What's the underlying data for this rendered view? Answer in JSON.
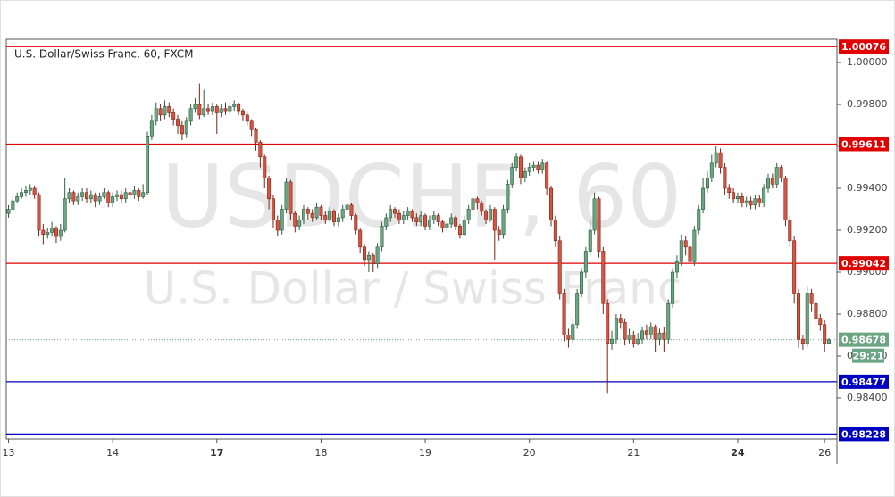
{
  "chart_data": {
    "type": "candlestick",
    "title": "U.S. Dollar/Swiss Franc, 60, FXCM",
    "watermark": "USDCHF, 60",
    "watermark_subtitle": "U.S. Dollar / Swiss Franc",
    "up_color": "#6ba583",
    "down_color": "#d75442",
    "ylim": [
      0.98204,
      1.00111
    ],
    "yticks": [
      {
        "value": 1,
        "label": "1.00000"
      },
      {
        "value": 0.998,
        "label": "0.99800"
      },
      {
        "value": 0.996,
        "label": "0.99600"
      },
      {
        "value": 0.994,
        "label": "0.99400"
      },
      {
        "value": 0.992,
        "label": "0.99200"
      },
      {
        "value": 0.99,
        "label": "0.99000"
      },
      {
        "value": 0.988,
        "label": "0.98800"
      },
      {
        "value": 0.986,
        "label": "0.98600"
      },
      {
        "value": 0.984,
        "label": "0.98400"
      }
    ],
    "grid": false,
    "levels": [
      {
        "value": 1.00076,
        "color": "#e00000"
      },
      {
        "value": 0.99611,
        "color": "#e00000"
      },
      {
        "value": 0.99042,
        "color": "#e00000"
      },
      {
        "value": 0.98477,
        "color": "#0000c0"
      },
      {
        "value": 0.98228,
        "color": "#0000c0"
      }
    ],
    "current": {
      "value": 0.98678,
      "countdown": "29:21",
      "color": "#6ba583"
    },
    "categories": [
      "13",
      null,
      null,
      null,
      null,
      null,
      null,
      null,
      null,
      null,
      null,
      null,
      null,
      null,
      null,
      null,
      null,
      null,
      null,
      null,
      null,
      null,
      null,
      null,
      "14",
      null,
      null,
      null,
      null,
      null,
      null,
      null,
      null,
      null,
      null,
      null,
      null,
      null,
      null,
      null,
      null,
      null,
      null,
      null,
      null,
      null,
      null,
      null,
      "17",
      null,
      null,
      null,
      null,
      null,
      null,
      null,
      null,
      null,
      null,
      null,
      null,
      null,
      null,
      null,
      null,
      null,
      null,
      null,
      null,
      null,
      null,
      null,
      "18",
      null,
      null,
      null,
      null,
      null,
      null,
      null,
      null,
      null,
      null,
      null,
      null,
      null,
      null,
      null,
      null,
      null,
      null,
      null,
      null,
      null,
      null,
      null,
      "19",
      null,
      null,
      null,
      null,
      null,
      null,
      null,
      null,
      null,
      null,
      null,
      null,
      null,
      null,
      null,
      null,
      null,
      null,
      null,
      null,
      null,
      null,
      null,
      "20",
      null,
      null,
      null,
      null,
      null,
      null,
      null,
      null,
      null,
      null,
      null,
      null,
      null,
      null,
      null,
      null,
      null,
      null,
      null,
      null,
      null,
      null,
      null,
      "21",
      null,
      null,
      null,
      null,
      null,
      null,
      null,
      null,
      null,
      null,
      null,
      null,
      null,
      null,
      null,
      null,
      null,
      null,
      null,
      null,
      null,
      null,
      null,
      "24",
      null,
      null,
      null,
      null,
      null,
      null,
      null,
      null,
      null,
      null,
      null,
      null,
      null,
      null,
      null,
      null,
      null,
      null,
      null,
      "26",
      null
    ],
    "candles": [
      [
        0.9928,
        0.9932,
        0.9926,
        0.993
      ],
      [
        0.993,
        0.9936,
        0.9929,
        0.9934
      ],
      [
        0.9934,
        0.9938,
        0.9933,
        0.9936
      ],
      [
        0.9936,
        0.994,
        0.9935,
        0.9938
      ],
      [
        0.9938,
        0.9941,
        0.9936,
        0.9939
      ],
      [
        0.9939,
        0.9942,
        0.9937,
        0.994
      ],
      [
        0.994,
        0.9941,
        0.9935,
        0.9937
      ],
      [
        0.9937,
        0.9938,
        0.9917,
        0.992
      ],
      [
        0.992,
        0.9923,
        0.9913,
        0.9918
      ],
      [
        0.9918,
        0.9921,
        0.9916,
        0.9919
      ],
      [
        0.9919,
        0.9924,
        0.9917,
        0.9921
      ],
      [
        0.9921,
        0.9922,
        0.9914,
        0.9917
      ],
      [
        0.9917,
        0.9923,
        0.9915,
        0.992
      ],
      [
        0.992,
        0.9945,
        0.9919,
        0.9935
      ],
      [
        0.9935,
        0.994,
        0.9933,
        0.9938
      ],
      [
        0.9938,
        0.9939,
        0.9932,
        0.9934
      ],
      [
        0.9934,
        0.9938,
        0.9932,
        0.9936
      ],
      [
        0.9936,
        0.994,
        0.9934,
        0.9938
      ],
      [
        0.9938,
        0.994,
        0.9933,
        0.9935
      ],
      [
        0.9935,
        0.9939,
        0.9933,
        0.9937
      ],
      [
        0.9937,
        0.9938,
        0.9931,
        0.9934
      ],
      [
        0.9934,
        0.9938,
        0.9932,
        0.9936
      ],
      [
        0.9936,
        0.994,
        0.9935,
        0.9938
      ],
      [
        0.9938,
        0.9939,
        0.9931,
        0.9933
      ],
      [
        0.9933,
        0.9938,
        0.9931,
        0.9936
      ],
      [
        0.9936,
        0.9939,
        0.9934,
        0.9937
      ],
      [
        0.9937,
        0.9939,
        0.9933,
        0.9935
      ],
      [
        0.9935,
        0.994,
        0.9933,
        0.9938
      ],
      [
        0.9938,
        0.994,
        0.9935,
        0.9937
      ],
      [
        0.9937,
        0.9941,
        0.9935,
        0.9939
      ],
      [
        0.9939,
        0.994,
        0.9934,
        0.9936
      ],
      [
        0.9936,
        0.9942,
        0.9935,
        0.9938
      ],
      [
        0.9938,
        0.9967,
        0.9937,
        0.9965
      ],
      [
        0.9965,
        0.9975,
        0.9963,
        0.9972
      ],
      [
        0.9972,
        0.9981,
        0.997,
        0.9978
      ],
      [
        0.9978,
        0.998,
        0.9972,
        0.9975
      ],
      [
        0.9975,
        0.9982,
        0.9973,
        0.9979
      ],
      [
        0.9979,
        0.9981,
        0.9974,
        0.9976
      ],
      [
        0.9976,
        0.9978,
        0.997,
        0.9973
      ],
      [
        0.9973,
        0.9975,
        0.9966,
        0.997
      ],
      [
        0.997,
        0.9972,
        0.9963,
        0.9966
      ],
      [
        0.9966,
        0.9974,
        0.9964,
        0.9972
      ],
      [
        0.9972,
        0.998,
        0.997,
        0.9978
      ],
      [
        0.9978,
        0.9983,
        0.9976,
        0.998
      ],
      [
        0.998,
        0.999,
        0.9973,
        0.9975
      ],
      [
        0.9975,
        0.9987,
        0.9974,
        0.9978
      ],
      [
        0.9978,
        0.998,
        0.9975,
        0.9977
      ],
      [
        0.9977,
        0.9981,
        0.9975,
        0.9979
      ],
      [
        0.9979,
        0.998,
        0.9966,
        0.9976
      ],
      [
        0.9976,
        0.998,
        0.9974,
        0.9978
      ],
      [
        0.9978,
        0.9981,
        0.9975,
        0.9977
      ],
      [
        0.9977,
        0.9981,
        0.9975,
        0.9979
      ],
      [
        0.9979,
        0.9982,
        0.9977,
        0.998
      ],
      [
        0.998,
        0.9981,
        0.9975,
        0.9977
      ],
      [
        0.9977,
        0.9978,
        0.9972,
        0.9975
      ],
      [
        0.9975,
        0.9976,
        0.997,
        0.9972
      ],
      [
        0.9972,
        0.9973,
        0.9965,
        0.9968
      ],
      [
        0.9968,
        0.9969,
        0.9958,
        0.9962
      ],
      [
        0.9962,
        0.9963,
        0.995,
        0.9955
      ],
      [
        0.9955,
        0.9956,
        0.994,
        0.9945
      ],
      [
        0.9945,
        0.9946,
        0.993,
        0.9935
      ],
      [
        0.9935,
        0.9937,
        0.9921,
        0.9925
      ],
      [
        0.9925,
        0.9927,
        0.9917,
        0.992
      ],
      [
        0.992,
        0.9932,
        0.9918,
        0.993
      ],
      [
        0.993,
        0.9945,
        0.9928,
        0.9943
      ],
      [
        0.9943,
        0.9944,
        0.9925,
        0.9928
      ],
      [
        0.9928,
        0.9929,
        0.9919,
        0.9922
      ],
      [
        0.9922,
        0.9927,
        0.992,
        0.9925
      ],
      [
        0.9925,
        0.9932,
        0.9923,
        0.993
      ],
      [
        0.993,
        0.9931,
        0.9925,
        0.9928
      ],
      [
        0.9928,
        0.993,
        0.9924,
        0.9926
      ],
      [
        0.9926,
        0.9933,
        0.9925,
        0.9931
      ],
      [
        0.9931,
        0.9932,
        0.9925,
        0.9927
      ],
      [
        0.9927,
        0.9929,
        0.9923,
        0.9925
      ],
      [
        0.9925,
        0.9931,
        0.9924,
        0.9929
      ],
      [
        0.9929,
        0.993,
        0.9922,
        0.9924
      ],
      [
        0.9924,
        0.9928,
        0.9922,
        0.9926
      ],
      [
        0.9926,
        0.9932,
        0.9924,
        0.993
      ],
      [
        0.993,
        0.9934,
        0.9928,
        0.9932
      ],
      [
        0.9932,
        0.9933,
        0.9925,
        0.9927
      ],
      [
        0.9927,
        0.9928,
        0.9918,
        0.992
      ],
      [
        0.992,
        0.9921,
        0.9909,
        0.9912
      ],
      [
        0.9912,
        0.9913,
        0.9903,
        0.9906
      ],
      [
        0.9906,
        0.991,
        0.99,
        0.9908
      ],
      [
        0.9908,
        0.9909,
        0.99,
        0.9904
      ],
      [
        0.9904,
        0.9914,
        0.9902,
        0.9912
      ],
      [
        0.9912,
        0.9924,
        0.991,
        0.9922
      ],
      [
        0.9922,
        0.9928,
        0.992,
        0.9926
      ],
      [
        0.9926,
        0.9932,
        0.9924,
        0.993
      ],
      [
        0.993,
        0.9931,
        0.9926,
        0.9928
      ],
      [
        0.9928,
        0.993,
        0.9923,
        0.9925
      ],
      [
        0.9925,
        0.9929,
        0.9923,
        0.9927
      ],
      [
        0.9927,
        0.9931,
        0.9925,
        0.9929
      ],
      [
        0.9929,
        0.993,
        0.9924,
        0.9926
      ],
      [
        0.9926,
        0.9928,
        0.9922,
        0.9924
      ],
      [
        0.9924,
        0.9929,
        0.9922,
        0.9927
      ],
      [
        0.9927,
        0.9928,
        0.992,
        0.9922
      ],
      [
        0.9922,
        0.9927,
        0.992,
        0.9925
      ],
      [
        0.9925,
        0.9929,
        0.9923,
        0.9927
      ],
      [
        0.9927,
        0.9928,
        0.9922,
        0.9924
      ],
      [
        0.9924,
        0.9925,
        0.9919,
        0.9921
      ],
      [
        0.9921,
        0.9925,
        0.9919,
        0.9923
      ],
      [
        0.9923,
        0.9928,
        0.9921,
        0.9926
      ],
      [
        0.9926,
        0.9927,
        0.992,
        0.9922
      ],
      [
        0.9922,
        0.9923,
        0.9916,
        0.9918
      ],
      [
        0.9918,
        0.9927,
        0.9917,
        0.9925
      ],
      [
        0.9925,
        0.9932,
        0.9923,
        0.993
      ],
      [
        0.993,
        0.9937,
        0.9928,
        0.9935
      ],
      [
        0.9935,
        0.9936,
        0.993,
        0.9933
      ],
      [
        0.9933,
        0.9934,
        0.9927,
        0.9929
      ],
      [
        0.9929,
        0.993,
        0.9923,
        0.9925
      ],
      [
        0.9925,
        0.9932,
        0.9924,
        0.993
      ],
      [
        0.993,
        0.9931,
        0.9906,
        0.992
      ],
      [
        0.992,
        0.9922,
        0.9915,
        0.9918
      ],
      [
        0.9918,
        0.9932,
        0.9916,
        0.993
      ],
      [
        0.993,
        0.9944,
        0.9928,
        0.9942
      ],
      [
        0.9942,
        0.9952,
        0.994,
        0.995
      ],
      [
        0.995,
        0.9957,
        0.9948,
        0.9955
      ],
      [
        0.9955,
        0.9956,
        0.9942,
        0.9945
      ],
      [
        0.9945,
        0.995,
        0.9943,
        0.9948
      ],
      [
        0.9948,
        0.9952,
        0.9946,
        0.995
      ],
      [
        0.995,
        0.9953,
        0.9948,
        0.9951
      ],
      [
        0.9951,
        0.9953,
        0.9947,
        0.9949
      ],
      [
        0.9949,
        0.9954,
        0.9947,
        0.9952
      ],
      [
        0.9952,
        0.9953,
        0.9937,
        0.994
      ],
      [
        0.994,
        0.9941,
        0.9922,
        0.9925
      ],
      [
        0.9925,
        0.9927,
        0.9912,
        0.9915
      ],
      [
        0.9915,
        0.9917,
        0.9887,
        0.989
      ],
      [
        0.989,
        0.9892,
        0.9867,
        0.987
      ],
      [
        0.987,
        0.9873,
        0.9864,
        0.9868
      ],
      [
        0.9868,
        0.9878,
        0.9866,
        0.9875
      ],
      [
        0.9875,
        0.9892,
        0.9873,
        0.989
      ],
      [
        0.989,
        0.9902,
        0.9888,
        0.99
      ],
      [
        0.99,
        0.9912,
        0.9897,
        0.991
      ],
      [
        0.991,
        0.9925,
        0.9908,
        0.992
      ],
      [
        0.992,
        0.9938,
        0.9918,
        0.9935
      ],
      [
        0.9935,
        0.9936,
        0.9907,
        0.991
      ],
      [
        0.991,
        0.9912,
        0.988,
        0.9885
      ],
      [
        0.9885,
        0.9887,
        0.9842,
        0.9866
      ],
      [
        0.9866,
        0.9872,
        0.9863,
        0.9868
      ],
      [
        0.9868,
        0.988,
        0.9866,
        0.9878
      ],
      [
        0.9878,
        0.988,
        0.9873,
        0.9876
      ],
      [
        0.9876,
        0.9878,
        0.9865,
        0.9868
      ],
      [
        0.9868,
        0.9873,
        0.9866,
        0.987
      ],
      [
        0.987,
        0.9872,
        0.9864,
        0.9866
      ],
      [
        0.9866,
        0.9871,
        0.9865,
        0.9868
      ],
      [
        0.9868,
        0.9874,
        0.9866,
        0.9872
      ],
      [
        0.9872,
        0.9875,
        0.9868,
        0.987
      ],
      [
        0.987,
        0.9876,
        0.9868,
        0.9874
      ],
      [
        0.9874,
        0.9875,
        0.9862,
        0.9868
      ],
      [
        0.9868,
        0.9873,
        0.9865,
        0.9871
      ],
      [
        0.9871,
        0.9874,
        0.9862,
        0.9868
      ],
      [
        0.9868,
        0.9887,
        0.9866,
        0.9885
      ],
      [
        0.9885,
        0.9902,
        0.9883,
        0.99
      ],
      [
        0.99,
        0.9908,
        0.9897,
        0.9905
      ],
      [
        0.9905,
        0.9918,
        0.9903,
        0.9915
      ],
      [
        0.9915,
        0.9917,
        0.9908,
        0.9912
      ],
      [
        0.9912,
        0.9914,
        0.99,
        0.9905
      ],
      [
        0.9905,
        0.9922,
        0.9903,
        0.992
      ],
      [
        0.992,
        0.9932,
        0.9918,
        0.993
      ],
      [
        0.993,
        0.9945,
        0.9928,
        0.994
      ],
      [
        0.994,
        0.9948,
        0.9938,
        0.9945
      ],
      [
        0.9945,
        0.9956,
        0.9943,
        0.9952
      ],
      [
        0.9952,
        0.996,
        0.995,
        0.9957
      ],
      [
        0.9957,
        0.9959,
        0.9947,
        0.995
      ],
      [
        0.995,
        0.9952,
        0.9937,
        0.994
      ],
      [
        0.994,
        0.9942,
        0.9935,
        0.9938
      ],
      [
        0.9938,
        0.994,
        0.9933,
        0.9935
      ],
      [
        0.9935,
        0.9938,
        0.9933,
        0.9936
      ],
      [
        0.9936,
        0.9938,
        0.9931,
        0.9933
      ],
      [
        0.9933,
        0.9936,
        0.9931,
        0.9934
      ],
      [
        0.9934,
        0.9936,
        0.993,
        0.9932
      ],
      [
        0.9932,
        0.9937,
        0.993,
        0.9935
      ],
      [
        0.9935,
        0.9937,
        0.9931,
        0.9933
      ],
      [
        0.9933,
        0.9942,
        0.9931,
        0.994
      ],
      [
        0.994,
        0.9947,
        0.9938,
        0.9945
      ],
      [
        0.9945,
        0.9947,
        0.994,
        0.9942
      ],
      [
        0.9942,
        0.9952,
        0.994,
        0.995
      ],
      [
        0.995,
        0.9951,
        0.9943,
        0.9945
      ],
      [
        0.9945,
        0.9946,
        0.9922,
        0.9925
      ],
      [
        0.9925,
        0.9927,
        0.9912,
        0.9915
      ],
      [
        0.9915,
        0.9917,
        0.9885,
        0.989
      ],
      [
        0.989,
        0.9892,
        0.9864,
        0.9868
      ],
      [
        0.9868,
        0.987,
        0.9863,
        0.9866
      ],
      [
        0.9866,
        0.9893,
        0.9864,
        0.989
      ],
      [
        0.989,
        0.9892,
        0.9881,
        0.9885
      ],
      [
        0.9885,
        0.9887,
        0.9875,
        0.9878
      ],
      [
        0.9878,
        0.988,
        0.9872,
        0.9875
      ],
      [
        0.9875,
        0.9877,
        0.9862,
        0.9866
      ],
      [
        0.9866,
        0.98685,
        0.98655,
        0.98678
      ]
    ]
  }
}
